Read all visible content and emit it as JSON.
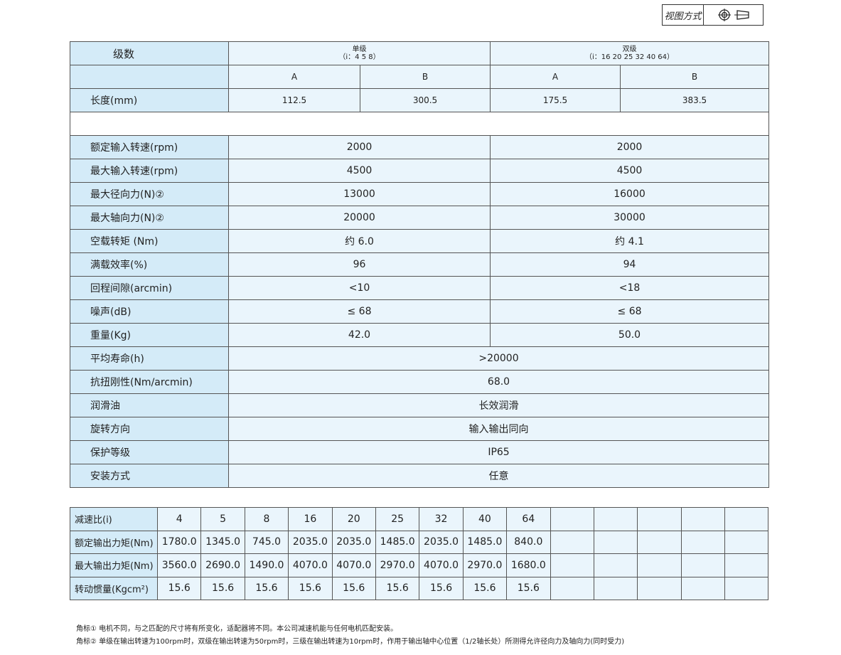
{
  "view_label": "视图方式",
  "spec": {
    "header": {
      "label": "级数",
      "single": "单级",
      "single_ratio": "（i：4 5 8）",
      "double": "双级",
      "double_ratio": "（i：16 20 25 32 40 64）"
    },
    "sub": [
      "A",
      "B",
      "A",
      "B"
    ],
    "length": {
      "label": "长度(mm)",
      "values": [
        "112.5",
        "300.5",
        "175.5",
        "383.5"
      ]
    },
    "rows2": [
      {
        "label": "额定输入转速(rpm)",
        "values": [
          "2000",
          "2000"
        ]
      },
      {
        "label": "最大输入转速(rpm)",
        "values": [
          "4500",
          "4500"
        ]
      },
      {
        "label": "最大径向力(N)②",
        "values": [
          "13000",
          "16000"
        ]
      },
      {
        "label": "最大轴向力(N)②",
        "values": [
          "20000",
          "30000"
        ]
      },
      {
        "label": "空载转矩 (Nm)",
        "values": [
          "约 6.0",
          "约 4.1"
        ]
      },
      {
        "label": "满载效率(%)",
        "values": [
          "96",
          "94"
        ]
      },
      {
        "label": "回程间隙(arcmin)",
        "values": [
          "<10",
          "<18"
        ]
      },
      {
        "label": "噪声(dB)",
        "values": [
          "≤ 68",
          "≤ 68"
        ]
      },
      {
        "label": "重量(Kg)",
        "values": [
          "42.0",
          "50.0"
        ]
      }
    ],
    "rows1": [
      {
        "label": "平均寿命(h)",
        "value": ">20000"
      },
      {
        "label": "抗扭刚性(Nm/arcmin)",
        "value": "68.0"
      },
      {
        "label": "润滑油",
        "value": "长效润滑"
      },
      {
        "label": "旋转方向",
        "value": "输入输出同向"
      },
      {
        "label": "保护等级",
        "value": "IP65"
      },
      {
        "label": "安装方式",
        "value": "任意"
      }
    ]
  },
  "ratio": {
    "rows": [
      {
        "label": "减速比(i)",
        "values": [
          "4",
          "5",
          "8",
          "16",
          "20",
          "25",
          "32",
          "40",
          "64",
          "",
          "",
          "",
          "",
          ""
        ]
      },
      {
        "label": "额定输出力矩(Nm)",
        "values": [
          "1780.0",
          "1345.0",
          "745.0",
          "2035.0",
          "2035.0",
          "1485.0",
          "2035.0",
          "1485.0",
          "840.0",
          "",
          "",
          "",
          "",
          ""
        ]
      },
      {
        "label": "最大输出力矩(Nm)",
        "values": [
          "3560.0",
          "2690.0",
          "1490.0",
          "4070.0",
          "4070.0",
          "2970.0",
          "4070.0",
          "2970.0",
          "1680.0",
          "",
          "",
          "",
          "",
          ""
        ]
      },
      {
        "label": "转动惯量(Kgcm²)",
        "values": [
          "15.6",
          "15.6",
          "15.6",
          "15.6",
          "15.6",
          "15.6",
          "15.6",
          "15.6",
          "15.6",
          "",
          "",
          "",
          "",
          ""
        ]
      }
    ]
  },
  "notes": [
    "角标①  电机不同，与之匹配的尺寸将有所变化，适配器将不同。本公司减速机能与任何电机匹配安装。",
    "角标②  单级在输出转速为100rpm时，双级在输出转速为50rpm时，三级在输出转速为10rpm时，作用于输出轴中心位置（1/2轴长处）所测得允许径向力及轴向力(同时受力)"
  ]
}
